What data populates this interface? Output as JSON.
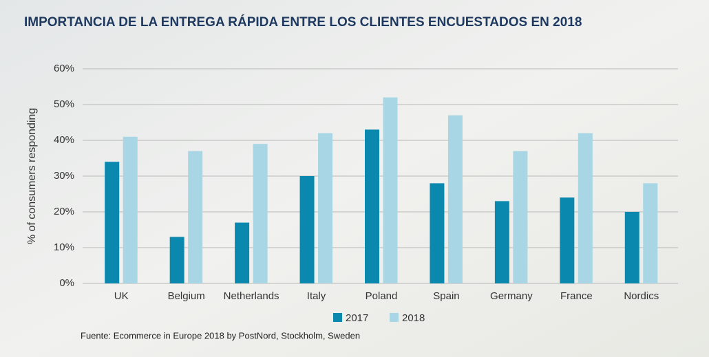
{
  "chart_data": {
    "type": "bar",
    "title": "IMPORTANCIA DE LA ENTREGA RÁPIDA ENTRE LOS CLIENTES ENCUESTADOS EN 2018",
    "y_label": "% of consumers responding",
    "categories": [
      "UK",
      "Belgium",
      "Netherlands",
      "Italy",
      "Poland",
      "Spain",
      "Germany",
      "France",
      "Nordics"
    ],
    "series": [
      {
        "name": "2017",
        "color": "#0a88ae",
        "values": [
          34,
          13,
          17,
          30,
          43,
          28,
          23,
          24,
          20
        ]
      },
      {
        "name": "2018",
        "color": "#a8d6e4",
        "values": [
          41,
          37,
          39,
          42,
          52,
          47,
          37,
          42,
          28
        ]
      }
    ],
    "ylim": [
      0,
      60
    ],
    "yticks": [
      {
        "value": 0,
        "label": "0%"
      },
      {
        "value": 10,
        "label": "10%"
      },
      {
        "value": 20,
        "label": "20%"
      },
      {
        "value": 30,
        "label": "30%"
      },
      {
        "value": 40,
        "label": "40%"
      },
      {
        "value": 50,
        "label": "50%"
      },
      {
        "value": 60,
        "label": "60%"
      }
    ],
    "grid": true,
    "source": "Fuente: Ecommerce in Europe 2018 by PostNord, Stockholm, Sweden"
  }
}
